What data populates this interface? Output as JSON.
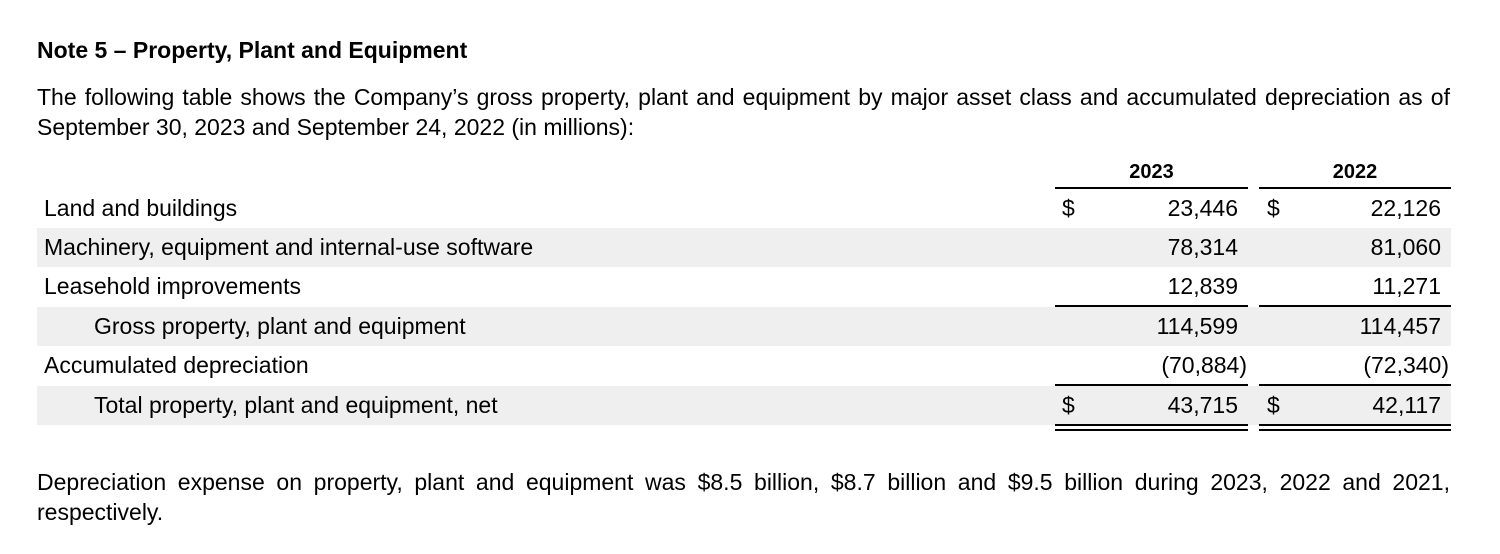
{
  "note": {
    "title": "Note 5 – Property, Plant and Equipment",
    "intro": "The following table shows the Company’s gross property, plant and equipment by major asset class and accumulated depreciation as of September 30, 2023 and September 24, 2022 (in millions):",
    "footer": "Depreciation expense on property, plant and equipment was $8.5 billion, $8.7 billion and $9.5 billion during 2023, 2022 and 2021, respectively."
  },
  "table": {
    "columns": [
      "2023",
      "2022"
    ],
    "currency_symbol": "$",
    "rows": [
      {
        "label": "Land and buildings",
        "v2023": "23,446",
        "v2022": "22,126"
      },
      {
        "label": "Machinery, equipment and internal-use software",
        "v2023": "78,314",
        "v2022": "81,060"
      },
      {
        "label": "Leasehold improvements",
        "v2023": "12,839",
        "v2022": "11,271"
      },
      {
        "label": "Gross property, plant and equipment",
        "v2023": "114,599",
        "v2022": "114,457"
      },
      {
        "label": "Accumulated depreciation",
        "v2023": "(70,884)",
        "v2022": "(72,340)"
      },
      {
        "label": "Total property, plant and equipment, net",
        "v2023": "43,715",
        "v2022": "42,117"
      }
    ]
  }
}
